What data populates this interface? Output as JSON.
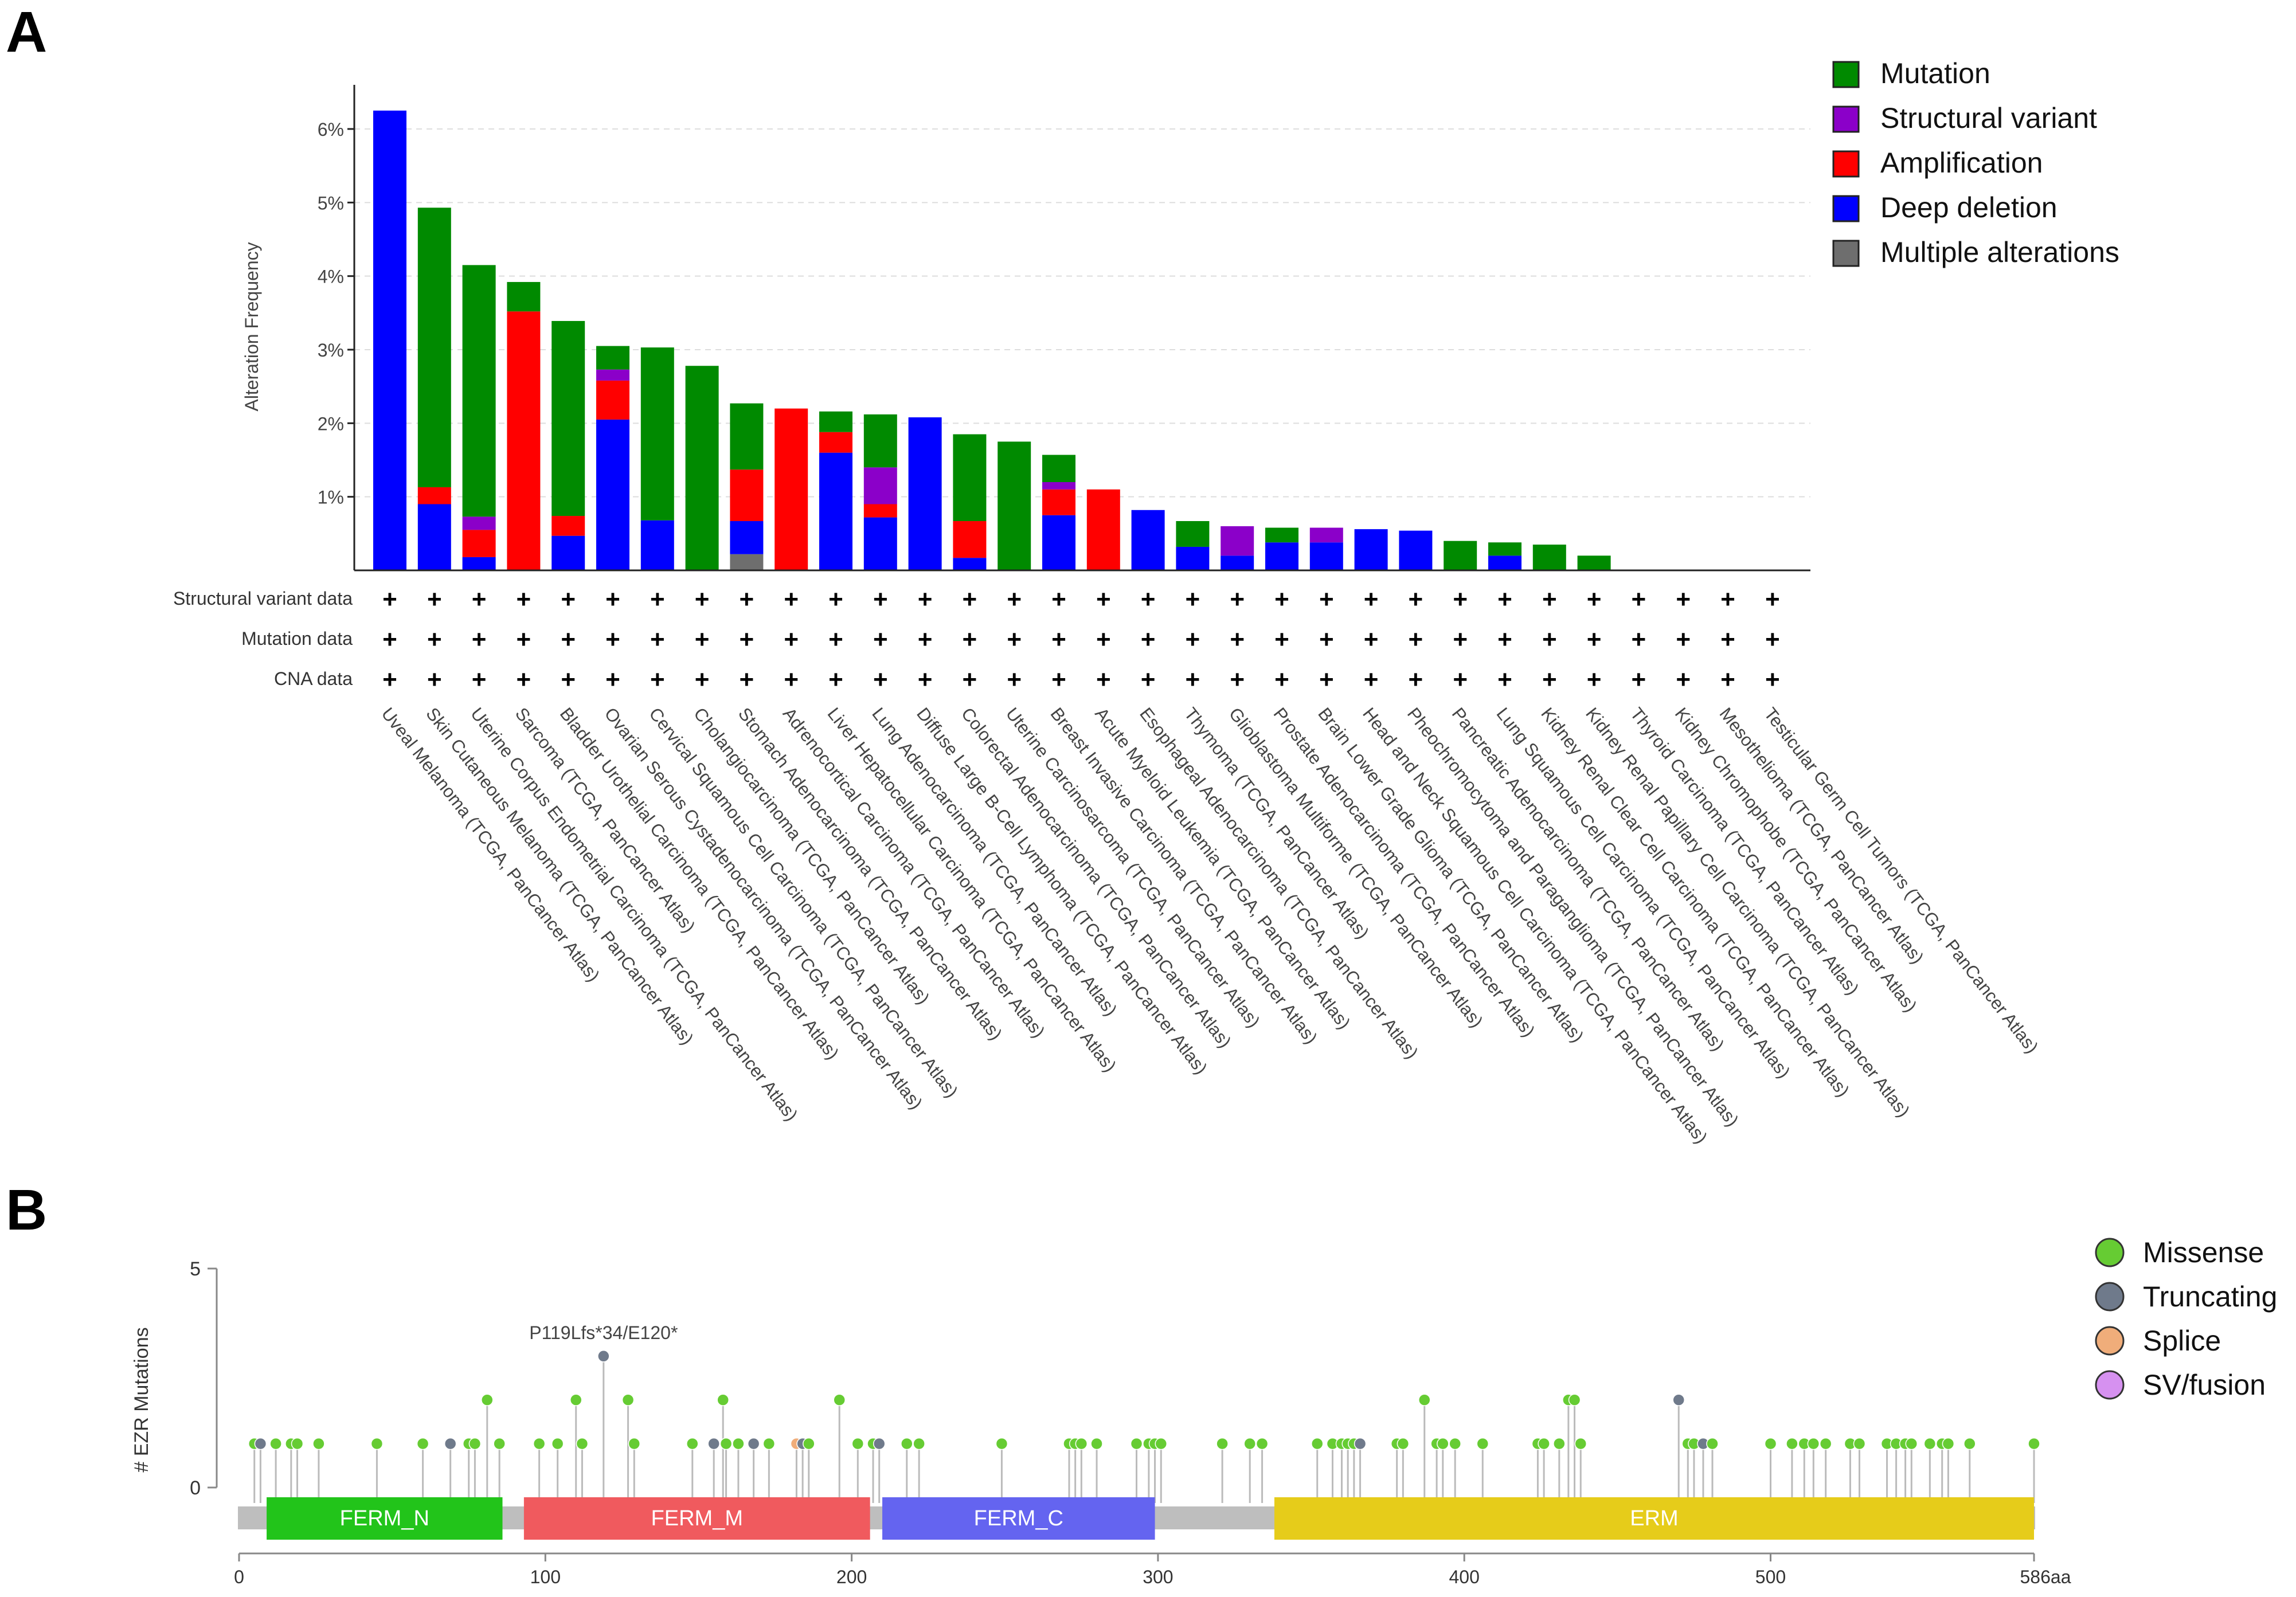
{
  "panels": {
    "a": "A",
    "b": "B"
  },
  "chart_data": [
    {
      "type": "bar",
      "stacked": true,
      "ylabel": "Alteration Frequency",
      "ylim": [
        0,
        6.6
      ],
      "yticks": [
        1,
        2,
        3,
        4,
        5,
        6
      ],
      "ytick_labels": [
        "1%",
        "2%",
        "3%",
        "4%",
        "5%",
        "6%"
      ],
      "grid": true,
      "legend_position": "top-right",
      "categories": [
        "Uveal Melanoma (TCGA, PanCancer Atlas)",
        "Skin Cutaneous Melanoma (TCGA, PanCancer Atlas)",
        "Uterine Corpus Endometrial Carcinoma (TCGA, PanCancer Atlas)",
        "Sarcoma (TCGA, PanCancer Atlas)",
        "Bladder Urothelial Carcinoma (TCGA, PanCancer Atlas)",
        "Ovarian Serous Cystadenocarcinoma (TCGA, PanCancer Atlas)",
        "Cervical Squamous Cell Carcinoma (TCGA, PanCancer Atlas)",
        "Cholangiocarcinoma (TCGA, PanCancer Atlas)",
        "Stomach Adenocarcinoma (TCGA, PanCancer Atlas)",
        "Adrenocortical Carcinoma (TCGA, PanCancer Atlas)",
        "Liver Hepatocellular Carcinoma (TCGA, PanCancer Atlas)",
        "Lung Adenocarcinoma (TCGA, PanCancer Atlas)",
        "Diffuse Large B-Cell Lymphoma (TCGA, PanCancer Atlas)",
        "Colorectal Adenocarcinoma (TCGA, PanCancer Atlas)",
        "Uterine Carcinosarcoma (TCGA, PanCancer Atlas)",
        "Breast Invasive Carcinoma (TCGA, PanCancer Atlas)",
        "Acute Myeloid Leukemia (TCGA, PanCancer Atlas)",
        "Esophageal Adenocarcinoma (TCGA, PanCancer Atlas)",
        "Thymoma (TCGA, PanCancer Atlas)",
        "Glioblastoma Multiforme (TCGA, PanCancer Atlas)",
        "Prostate Adenocarcinoma (TCGA, PanCancer Atlas)",
        "Brain Lower Grade Glioma (TCGA, PanCancer Atlas)",
        "Head and Neck Squamous Cell Carcinoma (TCGA, PanCancer Atlas)",
        "Pheochromocytoma and Paraganglioma (TCGA, PanCancer Atlas)",
        "Pancreatic Adenocarcinoma (TCGA, PanCancer Atlas)",
        "Lung Squamous Cell Carcinoma (TCGA, PanCancer Atlas)",
        "Kidney Renal Clear Cell Carcinoma (TCGA, PanCancer Atlas)",
        "Kidney Renal Papillary Cell Carcinoma (TCGA, PanCancer Atlas)",
        "Thyroid Carcinoma (TCGA, PanCancer Atlas)",
        "Kidney Chromophobe (TCGA, PanCancer Atlas)",
        "Mesothelioma (TCGA, PanCancer Atlas)",
        "Testicular Germ Cell Tumors (TCGA, PanCancer Atlas)"
      ],
      "series": [
        {
          "name": "Multiple alterations",
          "color": "#6e6e6e",
          "values": [
            0,
            0,
            0,
            0,
            0,
            0,
            0,
            0,
            0.22,
            0,
            0,
            0,
            0,
            0,
            0,
            0,
            0,
            0,
            0,
            0,
            0,
            0,
            0,
            0,
            0,
            0,
            0,
            0,
            0,
            0,
            0,
            0
          ]
        },
        {
          "name": "Deep deletion",
          "color": "#0000ff",
          "values": [
            6.25,
            0.9,
            0.18,
            0,
            0.47,
            2.05,
            0.68,
            0,
            0.45,
            0,
            1.6,
            0.72,
            2.08,
            0.17,
            0,
            0.75,
            0,
            0.82,
            0.32,
            0.2,
            0.38,
            0.38,
            0.56,
            0.54,
            0,
            0.2,
            0,
            0,
            0,
            0,
            0,
            0
          ]
        },
        {
          "name": "Amplification",
          "color": "#ff0000",
          "values": [
            0,
            0.23,
            0.37,
            3.52,
            0.27,
            0.53,
            0,
            0,
            0.7,
            2.2,
            0.28,
            0.18,
            0,
            0.5,
            0,
            0.35,
            1.1,
            0,
            0,
            0,
            0,
            0,
            0,
            0,
            0,
            0,
            0,
            0,
            0,
            0,
            0,
            0
          ]
        },
        {
          "name": "Structural variant",
          "color": "#8b00c9",
          "values": [
            0,
            0,
            0.18,
            0,
            0,
            0.15,
            0,
            0,
            0,
            0,
            0,
            0.5,
            0,
            0,
            0,
            0.1,
            0,
            0,
            0,
            0.4,
            0,
            0.2,
            0,
            0,
            0,
            0,
            0,
            0,
            0,
            0,
            0,
            0
          ]
        },
        {
          "name": "Mutation",
          "color": "#008a00",
          "values": [
            0,
            3.8,
            3.42,
            0.4,
            2.65,
            0.32,
            2.35,
            2.78,
            0.9,
            0,
            0.28,
            0.72,
            0,
            1.18,
            1.75,
            0.37,
            0,
            0,
            0.35,
            0,
            0.2,
            0,
            0,
            0,
            0.4,
            0.18,
            0.35,
            0.2,
            0,
            0,
            0,
            0
          ]
        }
      ],
      "legend": [
        "Mutation",
        "Structural variant",
        "Amplification",
        "Deep deletion",
        "Multiple alterations"
      ],
      "profile_rows": [
        "Structural variant data",
        "Mutation data",
        "CNA data"
      ],
      "profile_symbol": "+"
    },
    {
      "type": "scatter",
      "subtype": "lollipop",
      "ylabel": "# EZR Mutations",
      "xlim": [
        0,
        586
      ],
      "ylim": [
        0,
        5
      ],
      "yticks": [
        0,
        5
      ],
      "xticks": [
        0,
        100,
        200,
        300,
        400,
        500
      ],
      "xtick_labels": [
        "0",
        "100",
        "200",
        "300",
        "400",
        "500"
      ],
      "xmax_label": "586aa",
      "annotation": {
        "text": "P119Lfs*34/E120*",
        "x": 119,
        "y": 3
      },
      "domains": [
        {
          "name": "FERM_N",
          "start": 9,
          "end": 86,
          "color": "#22c41a"
        },
        {
          "name": "FERM_M",
          "start": 93,
          "end": 206,
          "color": "#f05a5e"
        },
        {
          "name": "FERM_C",
          "start": 210,
          "end": 299,
          "color": "#6464f0"
        },
        {
          "name": "ERM",
          "start": 338,
          "end": 586,
          "color": "#e6cc1a"
        }
      ],
      "legend": [
        {
          "name": "Missense",
          "color": "#66cc33"
        },
        {
          "name": "Truncating",
          "color": "#6f7a8b"
        },
        {
          "name": "Splice",
          "color": "#f0ad7a"
        },
        {
          "name": "SV/fusion",
          "color": "#d691f0"
        }
      ],
      "points": [
        {
          "x": 5,
          "y": 1,
          "t": "Missense"
        },
        {
          "x": 7,
          "y": 1,
          "t": "Truncating"
        },
        {
          "x": 12,
          "y": 1,
          "t": "Missense"
        },
        {
          "x": 17,
          "y": 1,
          "t": "Missense"
        },
        {
          "x": 19,
          "y": 1,
          "t": "Missense"
        },
        {
          "x": 26,
          "y": 1,
          "t": "Missense"
        },
        {
          "x": 45,
          "y": 1,
          "t": "Missense"
        },
        {
          "x": 60,
          "y": 1,
          "t": "Missense"
        },
        {
          "x": 69,
          "y": 1,
          "t": "Truncating"
        },
        {
          "x": 75,
          "y": 1,
          "t": "Missense"
        },
        {
          "x": 77,
          "y": 1,
          "t": "Missense"
        },
        {
          "x": 81,
          "y": 2,
          "t": "Missense"
        },
        {
          "x": 85,
          "y": 1,
          "t": "Missense"
        },
        {
          "x": 98,
          "y": 1,
          "t": "Missense"
        },
        {
          "x": 104,
          "y": 1,
          "t": "Missense"
        },
        {
          "x": 110,
          "y": 2,
          "t": "Missense"
        },
        {
          "x": 112,
          "y": 1,
          "t": "Missense"
        },
        {
          "x": 119,
          "y": 3,
          "t": "Truncating"
        },
        {
          "x": 127,
          "y": 2,
          "t": "Missense"
        },
        {
          "x": 129,
          "y": 1,
          "t": "Missense"
        },
        {
          "x": 148,
          "y": 1,
          "t": "Missense"
        },
        {
          "x": 155,
          "y": 1,
          "t": "Truncating"
        },
        {
          "x": 158,
          "y": 2,
          "t": "Missense"
        },
        {
          "x": 159,
          "y": 1,
          "t": "Missense"
        },
        {
          "x": 163,
          "y": 1,
          "t": "Missense"
        },
        {
          "x": 168,
          "y": 1,
          "t": "Truncating"
        },
        {
          "x": 173,
          "y": 1,
          "t": "Missense"
        },
        {
          "x": 182,
          "y": 1,
          "t": "Splice"
        },
        {
          "x": 184,
          "y": 1,
          "t": "Truncating"
        },
        {
          "x": 186,
          "y": 1,
          "t": "Missense"
        },
        {
          "x": 196,
          "y": 2,
          "t": "Missense"
        },
        {
          "x": 202,
          "y": 1,
          "t": "Missense"
        },
        {
          "x": 207,
          "y": 1,
          "t": "Missense"
        },
        {
          "x": 209,
          "y": 1,
          "t": "Truncating"
        },
        {
          "x": 218,
          "y": 1,
          "t": "Missense"
        },
        {
          "x": 222,
          "y": 1,
          "t": "Missense"
        },
        {
          "x": 249,
          "y": 1,
          "t": "Missense"
        },
        {
          "x": 271,
          "y": 1,
          "t": "Missense"
        },
        {
          "x": 273,
          "y": 1,
          "t": "Missense"
        },
        {
          "x": 275,
          "y": 1,
          "t": "Missense"
        },
        {
          "x": 280,
          "y": 1,
          "t": "Missense"
        },
        {
          "x": 293,
          "y": 1,
          "t": "Missense"
        },
        {
          "x": 297,
          "y": 1,
          "t": "Missense"
        },
        {
          "x": 299,
          "y": 1,
          "t": "Missense"
        },
        {
          "x": 301,
          "y": 1,
          "t": "Missense"
        },
        {
          "x": 321,
          "y": 1,
          "t": "Missense"
        },
        {
          "x": 330,
          "y": 1,
          "t": "Missense"
        },
        {
          "x": 334,
          "y": 1,
          "t": "Missense"
        },
        {
          "x": 352,
          "y": 1,
          "t": "Missense"
        },
        {
          "x": 357,
          "y": 1,
          "t": "Missense"
        },
        {
          "x": 360,
          "y": 1,
          "t": "Missense"
        },
        {
          "x": 362,
          "y": 1,
          "t": "Missense"
        },
        {
          "x": 364,
          "y": 1,
          "t": "Missense"
        },
        {
          "x": 366,
          "y": 1,
          "t": "Truncating"
        },
        {
          "x": 378,
          "y": 1,
          "t": "Missense"
        },
        {
          "x": 380,
          "y": 1,
          "t": "Missense"
        },
        {
          "x": 387,
          "y": 2,
          "t": "Missense"
        },
        {
          "x": 391,
          "y": 1,
          "t": "Missense"
        },
        {
          "x": 393,
          "y": 1,
          "t": "Missense"
        },
        {
          "x": 397,
          "y": 1,
          "t": "Missense"
        },
        {
          "x": 406,
          "y": 1,
          "t": "Missense"
        },
        {
          "x": 424,
          "y": 1,
          "t": "Missense"
        },
        {
          "x": 426,
          "y": 1,
          "t": "Missense"
        },
        {
          "x": 431,
          "y": 1,
          "t": "Missense"
        },
        {
          "x": 434,
          "y": 2,
          "t": "Missense"
        },
        {
          "x": 436,
          "y": 2,
          "t": "Missense"
        },
        {
          "x": 438,
          "y": 1,
          "t": "Missense"
        },
        {
          "x": 470,
          "y": 2,
          "t": "Truncating"
        },
        {
          "x": 473,
          "y": 1,
          "t": "Missense"
        },
        {
          "x": 475,
          "y": 1,
          "t": "Missense"
        },
        {
          "x": 478,
          "y": 1,
          "t": "Truncating"
        },
        {
          "x": 481,
          "y": 1,
          "t": "Missense"
        },
        {
          "x": 500,
          "y": 1,
          "t": "Missense"
        },
        {
          "x": 507,
          "y": 1,
          "t": "Missense"
        },
        {
          "x": 511,
          "y": 1,
          "t": "Missense"
        },
        {
          "x": 514,
          "y": 1,
          "t": "Missense"
        },
        {
          "x": 518,
          "y": 1,
          "t": "Missense"
        },
        {
          "x": 526,
          "y": 1,
          "t": "Missense"
        },
        {
          "x": 529,
          "y": 1,
          "t": "Missense"
        },
        {
          "x": 538,
          "y": 1,
          "t": "Missense"
        },
        {
          "x": 541,
          "y": 1,
          "t": "Missense"
        },
        {
          "x": 544,
          "y": 1,
          "t": "Missense"
        },
        {
          "x": 546,
          "y": 1,
          "t": "Missense"
        },
        {
          "x": 552,
          "y": 1,
          "t": "Missense"
        },
        {
          "x": 556,
          "y": 1,
          "t": "Missense"
        },
        {
          "x": 558,
          "y": 1,
          "t": "Missense"
        },
        {
          "x": 565,
          "y": 1,
          "t": "Missense"
        },
        {
          "x": 586,
          "y": 1,
          "t": "Missense"
        }
      ]
    }
  ]
}
